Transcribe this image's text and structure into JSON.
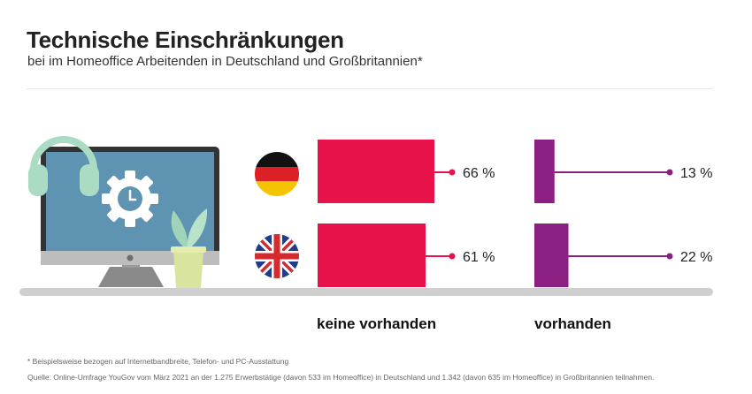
{
  "header": {
    "title": "Technische Einschränkungen",
    "subtitle": "bei im Homeoffice Arbeitenden in Deutschland und Großbritannien*"
  },
  "chart_data": {
    "type": "bar",
    "title": "Technische Einschränkungen",
    "subtitle": "bei im Homeoffice Arbeitenden in Deutschland und Großbritannien*",
    "categories": [
      "Deutschland",
      "Großbritannien"
    ],
    "series": [
      {
        "name": "keine vorhanden",
        "values": [
          66,
          61
        ],
        "labels": [
          "66 %",
          "61 %"
        ],
        "color": "#e8124b"
      },
      {
        "name": "vorhanden",
        "values": [
          13,
          22
        ],
        "labels": [
          "13 %",
          "22 %"
        ],
        "color": "#8c1f82"
      }
    ],
    "ylim": [
      0,
      100
    ]
  },
  "footer": {
    "note": "* Beispielsweise bezogen auf Internetbandbreite, Telefon- und PC-Ausstattung",
    "source": "Quelle: Online-Umfrage YouGov vom März 2021 an der 1.275 Erwerbstätige (davon 533 im Homeoffice) in Deutschland und 1.342 (davon 635 im Homeoffice) in Großbritannien teilnahmen."
  },
  "colors": {
    "accent_red": "#e8124b",
    "accent_purple": "#8c1f82",
    "screen": "#5f93b2",
    "mint": "#a9dcc2"
  },
  "icons": [
    "computer-icon",
    "gear-clock-icon",
    "headphones-icon",
    "plant-icon",
    "germany-flag-icon",
    "uk-flag-icon"
  ]
}
